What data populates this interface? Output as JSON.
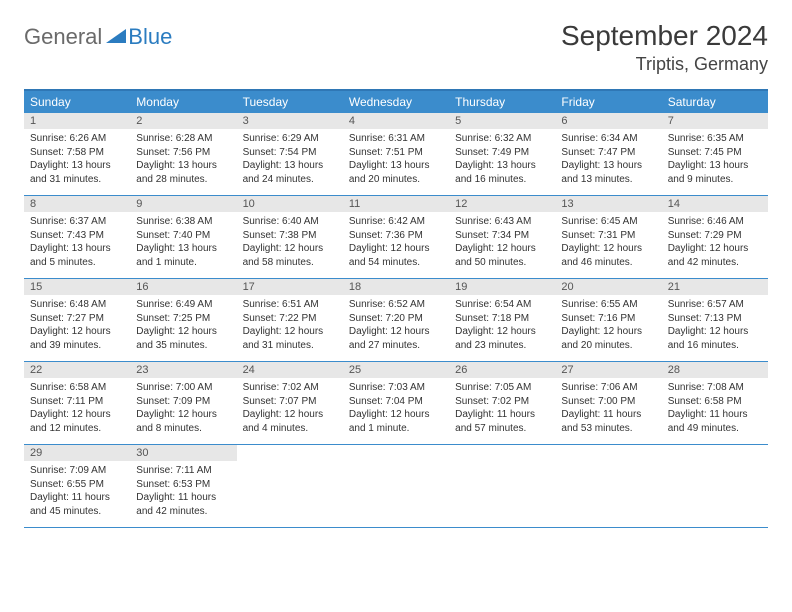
{
  "logo": {
    "general": "General",
    "blue": "Blue"
  },
  "title": "September 2024",
  "location": "Triptis, Germany",
  "colors": {
    "header_bg": "#3b8ccc",
    "header_text": "#ffffff",
    "border": "#3b8ccc",
    "daynum_bg": "#e7e7e7",
    "text": "#333333",
    "logo_gray": "#6a6a6a",
    "logo_blue": "#2b7cc0"
  },
  "day_names": [
    "Sunday",
    "Monday",
    "Tuesday",
    "Wednesday",
    "Thursday",
    "Friday",
    "Saturday"
  ],
  "days": [
    {
      "n": "1",
      "sunrise": "Sunrise: 6:26 AM",
      "sunset": "Sunset: 7:58 PM",
      "daylight": "Daylight: 13 hours and 31 minutes."
    },
    {
      "n": "2",
      "sunrise": "Sunrise: 6:28 AM",
      "sunset": "Sunset: 7:56 PM",
      "daylight": "Daylight: 13 hours and 28 minutes."
    },
    {
      "n": "3",
      "sunrise": "Sunrise: 6:29 AM",
      "sunset": "Sunset: 7:54 PM",
      "daylight": "Daylight: 13 hours and 24 minutes."
    },
    {
      "n": "4",
      "sunrise": "Sunrise: 6:31 AM",
      "sunset": "Sunset: 7:51 PM",
      "daylight": "Daylight: 13 hours and 20 minutes."
    },
    {
      "n": "5",
      "sunrise": "Sunrise: 6:32 AM",
      "sunset": "Sunset: 7:49 PM",
      "daylight": "Daylight: 13 hours and 16 minutes."
    },
    {
      "n": "6",
      "sunrise": "Sunrise: 6:34 AM",
      "sunset": "Sunset: 7:47 PM",
      "daylight": "Daylight: 13 hours and 13 minutes."
    },
    {
      "n": "7",
      "sunrise": "Sunrise: 6:35 AM",
      "sunset": "Sunset: 7:45 PM",
      "daylight": "Daylight: 13 hours and 9 minutes."
    },
    {
      "n": "8",
      "sunrise": "Sunrise: 6:37 AM",
      "sunset": "Sunset: 7:43 PM",
      "daylight": "Daylight: 13 hours and 5 minutes."
    },
    {
      "n": "9",
      "sunrise": "Sunrise: 6:38 AM",
      "sunset": "Sunset: 7:40 PM",
      "daylight": "Daylight: 13 hours and 1 minute."
    },
    {
      "n": "10",
      "sunrise": "Sunrise: 6:40 AM",
      "sunset": "Sunset: 7:38 PM",
      "daylight": "Daylight: 12 hours and 58 minutes."
    },
    {
      "n": "11",
      "sunrise": "Sunrise: 6:42 AM",
      "sunset": "Sunset: 7:36 PM",
      "daylight": "Daylight: 12 hours and 54 minutes."
    },
    {
      "n": "12",
      "sunrise": "Sunrise: 6:43 AM",
      "sunset": "Sunset: 7:34 PM",
      "daylight": "Daylight: 12 hours and 50 minutes."
    },
    {
      "n": "13",
      "sunrise": "Sunrise: 6:45 AM",
      "sunset": "Sunset: 7:31 PM",
      "daylight": "Daylight: 12 hours and 46 minutes."
    },
    {
      "n": "14",
      "sunrise": "Sunrise: 6:46 AM",
      "sunset": "Sunset: 7:29 PM",
      "daylight": "Daylight: 12 hours and 42 minutes."
    },
    {
      "n": "15",
      "sunrise": "Sunrise: 6:48 AM",
      "sunset": "Sunset: 7:27 PM",
      "daylight": "Daylight: 12 hours and 39 minutes."
    },
    {
      "n": "16",
      "sunrise": "Sunrise: 6:49 AM",
      "sunset": "Sunset: 7:25 PM",
      "daylight": "Daylight: 12 hours and 35 minutes."
    },
    {
      "n": "17",
      "sunrise": "Sunrise: 6:51 AM",
      "sunset": "Sunset: 7:22 PM",
      "daylight": "Daylight: 12 hours and 31 minutes."
    },
    {
      "n": "18",
      "sunrise": "Sunrise: 6:52 AM",
      "sunset": "Sunset: 7:20 PM",
      "daylight": "Daylight: 12 hours and 27 minutes."
    },
    {
      "n": "19",
      "sunrise": "Sunrise: 6:54 AM",
      "sunset": "Sunset: 7:18 PM",
      "daylight": "Daylight: 12 hours and 23 minutes."
    },
    {
      "n": "20",
      "sunrise": "Sunrise: 6:55 AM",
      "sunset": "Sunset: 7:16 PM",
      "daylight": "Daylight: 12 hours and 20 minutes."
    },
    {
      "n": "21",
      "sunrise": "Sunrise: 6:57 AM",
      "sunset": "Sunset: 7:13 PM",
      "daylight": "Daylight: 12 hours and 16 minutes."
    },
    {
      "n": "22",
      "sunrise": "Sunrise: 6:58 AM",
      "sunset": "Sunset: 7:11 PM",
      "daylight": "Daylight: 12 hours and 12 minutes."
    },
    {
      "n": "23",
      "sunrise": "Sunrise: 7:00 AM",
      "sunset": "Sunset: 7:09 PM",
      "daylight": "Daylight: 12 hours and 8 minutes."
    },
    {
      "n": "24",
      "sunrise": "Sunrise: 7:02 AM",
      "sunset": "Sunset: 7:07 PM",
      "daylight": "Daylight: 12 hours and 4 minutes."
    },
    {
      "n": "25",
      "sunrise": "Sunrise: 7:03 AM",
      "sunset": "Sunset: 7:04 PM",
      "daylight": "Daylight: 12 hours and 1 minute."
    },
    {
      "n": "26",
      "sunrise": "Sunrise: 7:05 AM",
      "sunset": "Sunset: 7:02 PM",
      "daylight": "Daylight: 11 hours and 57 minutes."
    },
    {
      "n": "27",
      "sunrise": "Sunrise: 7:06 AM",
      "sunset": "Sunset: 7:00 PM",
      "daylight": "Daylight: 11 hours and 53 minutes."
    },
    {
      "n": "28",
      "sunrise": "Sunrise: 7:08 AM",
      "sunset": "Sunset: 6:58 PM",
      "daylight": "Daylight: 11 hours and 49 minutes."
    },
    {
      "n": "29",
      "sunrise": "Sunrise: 7:09 AM",
      "sunset": "Sunset: 6:55 PM",
      "daylight": "Daylight: 11 hours and 45 minutes."
    },
    {
      "n": "30",
      "sunrise": "Sunrise: 7:11 AM",
      "sunset": "Sunset: 6:53 PM",
      "daylight": "Daylight: 11 hours and 42 minutes."
    }
  ]
}
